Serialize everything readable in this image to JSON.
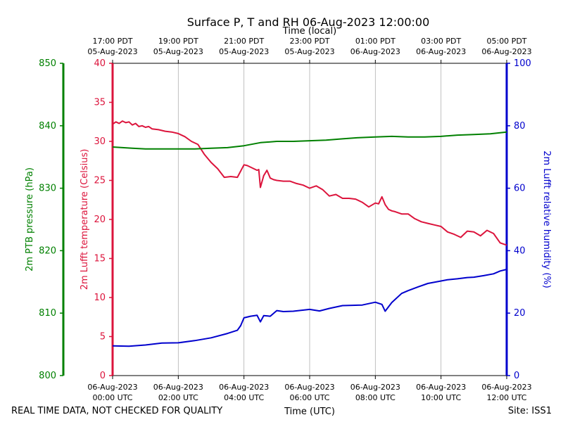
{
  "chart_data": {
    "type": "line",
    "title": "Surface P, T and RH 06-Aug-2023 12:00:00",
    "top_axis_label": "Time (local)",
    "bottom_axis_label": "Time (UTC)",
    "footer_left": "REAL TIME DATA, NOT CHECKED FOR QUALITY",
    "footer_right": "Site: ISS1",
    "x_range_hours": [
      0,
      12
    ],
    "grid_hours": [
      2,
      4,
      6,
      8,
      10
    ],
    "bottom_ticks": [
      {
        "hour": 0,
        "line1": "06-Aug-2023",
        "line2": "00:00 UTC"
      },
      {
        "hour": 2,
        "line1": "06-Aug-2023",
        "line2": "02:00 UTC"
      },
      {
        "hour": 4,
        "line1": "06-Aug-2023",
        "line2": "04:00 UTC"
      },
      {
        "hour": 6,
        "line1": "06-Aug-2023",
        "line2": "06:00 UTC"
      },
      {
        "hour": 8,
        "line1": "06-Aug-2023",
        "line2": "08:00 UTC"
      },
      {
        "hour": 10,
        "line1": "06-Aug-2023",
        "line2": "10:00 UTC"
      },
      {
        "hour": 12,
        "line1": "06-Aug-2023",
        "line2": "12:00 UTC"
      }
    ],
    "top_ticks": [
      {
        "hour": 0,
        "line1": "17:00 PDT",
        "line2": "05-Aug-2023"
      },
      {
        "hour": 2,
        "line1": "19:00 PDT",
        "line2": "05-Aug-2023"
      },
      {
        "hour": 4,
        "line1": "21:00 PDT",
        "line2": "05-Aug-2023"
      },
      {
        "hour": 6,
        "line1": "23:00 PDT",
        "line2": "05-Aug-2023"
      },
      {
        "hour": 8,
        "line1": "01:00 PDT",
        "line2": "06-Aug-2023"
      },
      {
        "hour": 10,
        "line1": "03:00 PDT",
        "line2": "06-Aug-2023"
      },
      {
        "hour": 12,
        "line1": "05:00 PDT",
        "line2": "06-Aug-2023"
      }
    ],
    "axes": {
      "pressure": {
        "label": "2m PTB pressure (hPa)",
        "range": [
          800,
          850
        ],
        "ticks": [
          800,
          810,
          820,
          830,
          840,
          850
        ],
        "color": "#008000"
      },
      "temperature": {
        "label": "2m Lufft temperature (Celsius)",
        "range": [
          0,
          40
        ],
        "ticks": [
          0,
          5,
          10,
          15,
          20,
          25,
          30,
          35,
          40
        ],
        "color": "#dc143c"
      },
      "humidity": {
        "label": "2m Lufft relative humidity (%)",
        "range": [
          0,
          100
        ],
        "ticks": [
          0,
          20,
          40,
          60,
          80,
          100
        ],
        "color": "#0000cd"
      }
    },
    "series": [
      {
        "name": "temperature",
        "axis": "temperature",
        "color": "#dc143c",
        "x": [
          0,
          0.1,
          0.2,
          0.3,
          0.4,
          0.5,
          0.6,
          0.7,
          0.8,
          0.9,
          1.0,
          1.1,
          1.2,
          1.4,
          1.6,
          1.8,
          2.0,
          2.2,
          2.4,
          2.6,
          2.8,
          3.0,
          3.2,
          3.4,
          3.6,
          3.8,
          4.0,
          4.1,
          4.2,
          4.4,
          4.45,
          4.5,
          4.6,
          4.7,
          4.8,
          4.9,
          5.0,
          5.2,
          5.4,
          5.6,
          5.8,
          6.0,
          6.2,
          6.4,
          6.6,
          6.8,
          7.0,
          7.2,
          7.4,
          7.6,
          7.8,
          8.0,
          8.1,
          8.2,
          8.3,
          8.4,
          8.5,
          8.6,
          8.8,
          9.0,
          9.2,
          9.4,
          9.6,
          9.8,
          10.0,
          10.2,
          10.4,
          10.6,
          10.8,
          11.0,
          11.2,
          11.4,
          11.6,
          11.8,
          12.0
        ],
        "y": [
          32.2,
          32.5,
          32.3,
          32.6,
          32.4,
          32.5,
          32.1,
          32.3,
          31.9,
          32.0,
          31.8,
          31.9,
          31.6,
          31.5,
          31.3,
          31.2,
          31.0,
          30.6,
          30.0,
          29.6,
          28.3,
          27.3,
          26.5,
          25.4,
          25.5,
          25.4,
          27.0,
          26.9,
          26.7,
          26.3,
          26.4,
          24.1,
          25.6,
          26.3,
          25.3,
          25.1,
          25.0,
          24.9,
          24.9,
          24.6,
          24.4,
          24.0,
          24.3,
          23.8,
          23.0,
          23.2,
          22.7,
          22.7,
          22.6,
          22.2,
          21.6,
          22.1,
          22.0,
          22.9,
          21.9,
          21.3,
          21.1,
          21.0,
          20.7,
          20.7,
          20.1,
          19.7,
          19.5,
          19.3,
          19.1,
          18.4,
          18.1,
          17.7,
          18.5,
          18.4,
          17.9,
          18.6,
          18.2,
          17.0,
          16.7
        ]
      },
      {
        "name": "pressure",
        "axis": "pressure",
        "color": "#008000",
        "x": [
          0,
          0.3,
          0.6,
          1.0,
          1.5,
          2.0,
          2.5,
          3.0,
          3.5,
          4.0,
          4.5,
          5.0,
          5.5,
          6.0,
          6.5,
          7.0,
          7.5,
          8.0,
          8.5,
          9.0,
          9.5,
          10.0,
          10.5,
          11.0,
          11.5,
          12.0
        ],
        "y": [
          836.6,
          836.5,
          836.4,
          836.3,
          836.3,
          836.3,
          836.3,
          836.4,
          836.5,
          836.8,
          837.3,
          837.5,
          837.5,
          837.6,
          837.7,
          837.9,
          838.1,
          838.2,
          838.3,
          838.2,
          838.2,
          838.3,
          838.5,
          838.6,
          838.7,
          839.0
        ]
      },
      {
        "name": "humidity",
        "axis": "humidity",
        "color": "#0000cd",
        "x": [
          0,
          0.5,
          1.0,
          1.5,
          2.0,
          2.5,
          3.0,
          3.5,
          3.8,
          3.9,
          4.0,
          4.2,
          4.4,
          4.5,
          4.6,
          4.8,
          5.0,
          5.2,
          5.5,
          6.0,
          6.3,
          6.6,
          7.0,
          7.3,
          7.6,
          8.0,
          8.2,
          8.3,
          8.5,
          8.8,
          9.0,
          9.3,
          9.6,
          10.0,
          10.2,
          10.5,
          10.8,
          11.0,
          11.3,
          11.6,
          11.8,
          12.0
        ],
        "y": [
          9.5,
          9.4,
          9.8,
          10.4,
          10.5,
          11.2,
          12.1,
          13.5,
          14.5,
          16.0,
          18.5,
          19.0,
          19.3,
          17.2,
          19.2,
          19.0,
          20.8,
          20.5,
          20.6,
          21.2,
          20.7,
          21.5,
          22.4,
          22.5,
          22.6,
          23.5,
          22.8,
          20.6,
          23.4,
          26.3,
          27.2,
          28.4,
          29.5,
          30.3,
          30.7,
          31.0,
          31.4,
          31.5,
          32.0,
          32.6,
          33.5,
          34.0
        ]
      }
    ]
  }
}
